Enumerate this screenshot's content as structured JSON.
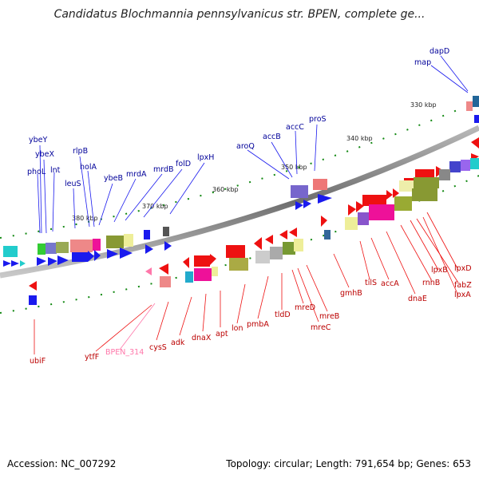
{
  "title": "Candidatus Blochmannia pennsylvanicus str. BPEN, complete ge...",
  "footer": {
    "accession": "Accession: NC_007292",
    "topology": "Topology: circular; Length: 791,654 bp; Genes: 653"
  },
  "kbp_labels": [
    "330 kbp",
    "340 kbp",
    "350 kbp",
    "360 kbp",
    "370 kbp",
    "380 kbp"
  ],
  "genes_top": [
    "ybeY",
    "ybeX",
    "phoL",
    "lnt",
    "leuS",
    "rlpB",
    "holA",
    "ybeB",
    "mrdA",
    "mrdB",
    "folD",
    "lpxH",
    "aroQ",
    "accB",
    "accC",
    "proS",
    "map",
    "dapD"
  ],
  "genes_bottom": [
    "ubiF",
    "ytfF",
    "BPEN_314",
    "cysS",
    "adk",
    "dnaX",
    "apt",
    "lon",
    "pmbA",
    "tldD",
    "mreD",
    "mreC",
    "mreB",
    "gmhB",
    "tilS",
    "accA",
    "dnaE",
    "rnhB",
    "lpxB",
    "fabZ",
    "lpxA",
    "lpxD"
  ],
  "colors": {
    "forward": "#1a1aee",
    "reverse": "#ee1111",
    "label_forward": "#000099",
    "label_reverse": "#bb0000",
    "pseudogene": "#ff77aa",
    "backbone": "#8c8c8c",
    "tick": "#118811"
  }
}
